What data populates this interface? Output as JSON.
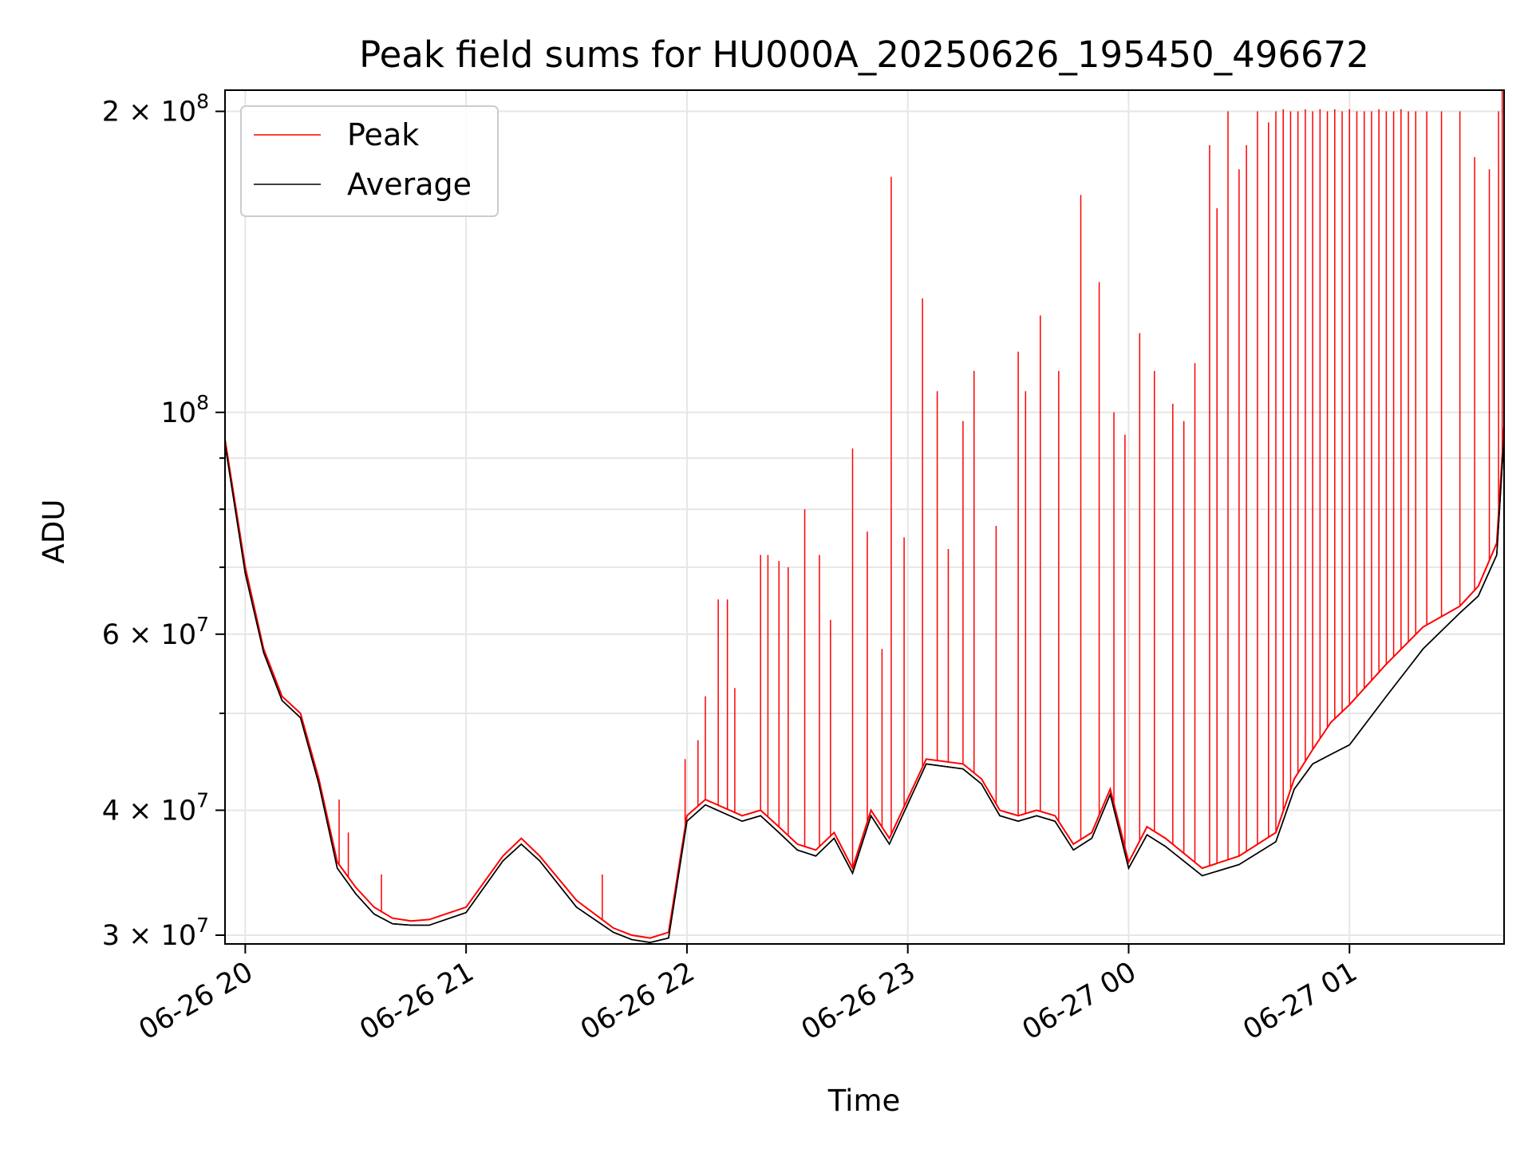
{
  "chart_data": {
    "type": "line",
    "title": "Peak field sums for HU000A_20250626_195450_496672",
    "xlabel": "Time",
    "ylabel": "ADU",
    "yscale": "log",
    "xlim": [
      "2025-06-26T19:54:30",
      "2025-06-27T01:42:00"
    ],
    "ylim": [
      29400000,
      210000000
    ],
    "grid": true,
    "legend_position": "top-left",
    "x_ticks": [
      {
        "t": "2025-06-26T20:00:00",
        "label": "06-26 20"
      },
      {
        "t": "2025-06-26T21:00:00",
        "label": "06-26 21"
      },
      {
        "t": "2025-06-26T22:00:00",
        "label": "06-26 22"
      },
      {
        "t": "2025-06-26T23:00:00",
        "label": "06-26 23"
      },
      {
        "t": "2025-06-27T00:00:00",
        "label": "06-27 00"
      },
      {
        "t": "2025-06-27T01:00:00",
        "label": "06-27 01"
      }
    ],
    "y_ticks": [
      {
        "value": 30000000,
        "mant": "3",
        "exp": "7"
      },
      {
        "value": 40000000,
        "mant": "4",
        "exp": "7"
      },
      {
        "value": 60000000,
        "mant": "6",
        "exp": "7"
      },
      {
        "value": 100000000,
        "mant": "",
        "exp": "8"
      },
      {
        "value": 200000000,
        "mant": "2",
        "exp": "8"
      }
    ],
    "y_minor_ticks": [
      50000000,
      70000000,
      80000000,
      90000000
    ],
    "tick_base": "10",
    "series": [
      {
        "name": "Peak",
        "color": "#ff0000",
        "x": [
          "2025-06-26T19:54:30",
          "2025-06-26T20:00:00",
          "2025-06-26T20:05:00",
          "2025-06-26T20:10:00",
          "2025-06-26T20:15:00",
          "2025-06-26T20:20:00",
          "2025-06-26T20:25:00",
          "2025-06-26T20:30:00",
          "2025-06-26T20:35:00",
          "2025-06-26T20:40:00",
          "2025-06-26T20:45:00",
          "2025-06-26T20:50:00",
          "2025-06-26T21:00:00",
          "2025-06-26T21:10:00",
          "2025-06-26T21:15:00",
          "2025-06-26T21:20:00",
          "2025-06-26T21:30:00",
          "2025-06-26T21:40:00",
          "2025-06-26T21:45:00",
          "2025-06-26T21:50:00",
          "2025-06-26T21:55:00",
          "2025-06-26T22:00:00",
          "2025-06-26T22:05:00",
          "2025-06-26T22:15:00",
          "2025-06-26T22:20:00",
          "2025-06-26T22:25:00",
          "2025-06-26T22:30:00",
          "2025-06-26T22:35:00",
          "2025-06-26T22:40:00",
          "2025-06-26T22:45:00",
          "2025-06-26T22:50:00",
          "2025-06-26T22:55:00",
          "2025-06-26T23:05:00",
          "2025-06-26T23:15:00",
          "2025-06-26T23:20:00",
          "2025-06-26T23:25:00",
          "2025-06-26T23:30:00",
          "2025-06-26T23:35:00",
          "2025-06-26T23:40:00",
          "2025-06-26T23:45:00",
          "2025-06-26T23:50:00",
          "2025-06-26T23:55:00",
          "2025-06-27T00:00:00",
          "2025-06-27T00:05:00",
          "2025-06-27T00:10:00",
          "2025-06-27T00:20:00",
          "2025-06-27T00:30:00",
          "2025-06-27T00:40:00",
          "2025-06-27T00:45:00",
          "2025-06-27T00:50:00",
          "2025-06-27T00:55:00",
          "2025-06-27T01:00:00",
          "2025-06-27T01:10:00",
          "2025-06-27T01:20:00",
          "2025-06-27T01:30:00",
          "2025-06-27T01:35:00",
          "2025-06-27T01:40:00",
          "2025-06-27T01:42:00"
        ],
        "y": [
          94000000,
          70000000,
          58000000,
          52000000,
          50000000,
          43000000,
          35500000,
          33500000,
          32000000,
          31200000,
          31000000,
          31100000,
          32000000,
          36000000,
          37500000,
          36000000,
          32500000,
          30500000,
          30000000,
          29800000,
          30200000,
          39500000,
          41000000,
          39500000,
          40000000,
          38500000,
          37000000,
          36500000,
          38000000,
          35000000,
          40000000,
          37500000,
          45000000,
          44500000,
          43000000,
          40000000,
          39500000,
          40000000,
          39500000,
          37000000,
          38000000,
          42000000,
          35500000,
          38500000,
          37500000,
          35000000,
          36000000,
          38000000,
          43000000,
          46000000,
          49000000,
          51000000,
          56000000,
          61000000,
          64000000,
          67000000,
          74000000,
          97000000
        ]
      },
      {
        "name": "Average",
        "color": "#000000",
        "x": [
          "2025-06-26T19:54:30",
          "2025-06-26T20:00:00",
          "2025-06-26T20:05:00",
          "2025-06-26T20:10:00",
          "2025-06-26T20:15:00",
          "2025-06-26T20:20:00",
          "2025-06-26T20:25:00",
          "2025-06-26T20:30:00",
          "2025-06-26T20:35:00",
          "2025-06-26T20:40:00",
          "2025-06-26T20:45:00",
          "2025-06-26T20:50:00",
          "2025-06-26T21:00:00",
          "2025-06-26T21:10:00",
          "2025-06-26T21:15:00",
          "2025-06-26T21:20:00",
          "2025-06-26T21:30:00",
          "2025-06-26T21:40:00",
          "2025-06-26T21:45:00",
          "2025-06-26T21:50:00",
          "2025-06-26T21:55:00",
          "2025-06-26T22:00:00",
          "2025-06-26T22:05:00",
          "2025-06-26T22:15:00",
          "2025-06-26T22:20:00",
          "2025-06-26T22:25:00",
          "2025-06-26T22:30:00",
          "2025-06-26T22:35:00",
          "2025-06-26T22:40:00",
          "2025-06-26T22:45:00",
          "2025-06-26T22:50:00",
          "2025-06-26T22:55:00",
          "2025-06-26T23:05:00",
          "2025-06-26T23:15:00",
          "2025-06-26T23:20:00",
          "2025-06-26T23:25:00",
          "2025-06-26T23:30:00",
          "2025-06-26T23:35:00",
          "2025-06-26T23:40:00",
          "2025-06-26T23:45:00",
          "2025-06-26T23:50:00",
          "2025-06-26T23:55:00",
          "2025-06-27T00:00:00",
          "2025-06-27T00:05:00",
          "2025-06-27T00:10:00",
          "2025-06-27T00:20:00",
          "2025-06-27T00:30:00",
          "2025-06-27T00:40:00",
          "2025-06-27T00:45:00",
          "2025-06-27T00:50:00",
          "2025-06-27T00:55:00",
          "2025-06-27T01:00:00",
          "2025-06-27T01:10:00",
          "2025-06-27T01:20:00",
          "2025-06-27T01:30:00",
          "2025-06-27T01:35:00",
          "2025-06-27T01:40:00",
          "2025-06-27T01:42:00"
        ],
        "y": [
          93000000,
          69000000,
          57500000,
          51500000,
          49500000,
          42500000,
          35000000,
          33000000,
          31500000,
          30800000,
          30700000,
          30700000,
          31600000,
          35600000,
          37000000,
          35600000,
          32000000,
          30200000,
          29700000,
          29500000,
          29800000,
          39000000,
          40500000,
          39000000,
          39500000,
          38000000,
          36500000,
          36000000,
          37500000,
          34600000,
          39500000,
          37000000,
          44500000,
          44000000,
          42500000,
          39500000,
          39000000,
          39500000,
          39000000,
          36500000,
          37500000,
          41500000,
          35000000,
          37800000,
          36800000,
          34400000,
          35300000,
          37200000,
          42000000,
          44500000,
          45500000,
          46500000,
          52000000,
          58000000,
          63000000,
          65500000,
          72000000,
          95000000
        ]
      }
    ],
    "spikes": {
      "color": "#ff0000",
      "x": [
        "2025-06-26T20:25:30",
        "2025-06-26T20:28:00",
        "2025-06-26T20:37:00",
        "2025-06-26T21:37:00",
        "2025-06-26T21:59:30",
        "2025-06-26T22:03:00",
        "2025-06-26T22:05:00",
        "2025-06-26T22:08:30",
        "2025-06-26T22:11:00",
        "2025-06-26T22:13:00",
        "2025-06-26T22:20:00",
        "2025-06-26T22:22:00",
        "2025-06-26T22:25:00",
        "2025-06-26T22:27:30",
        "2025-06-26T22:32:00",
        "2025-06-26T22:36:00",
        "2025-06-26T22:39:00",
        "2025-06-26T22:45:00",
        "2025-06-26T22:49:00",
        "2025-06-26T22:53:00",
        "2025-06-26T22:55:30",
        "2025-06-26T22:59:00",
        "2025-06-26T23:04:00",
        "2025-06-26T23:08:00",
        "2025-06-26T23:11:00",
        "2025-06-26T23:15:00",
        "2025-06-26T23:18:00",
        "2025-06-26T23:24:00",
        "2025-06-26T23:30:00",
        "2025-06-26T23:32:00",
        "2025-06-26T23:36:00",
        "2025-06-26T23:41:00",
        "2025-06-26T23:47:00",
        "2025-06-26T23:52:00",
        "2025-06-26T23:56:00",
        "2025-06-26T23:59:00",
        "2025-06-27T00:03:00",
        "2025-06-27T00:07:00",
        "2025-06-27T00:12:00",
        "2025-06-27T00:15:00",
        "2025-06-27T00:18:00",
        "2025-06-27T00:22:00",
        "2025-06-27T00:24:00",
        "2025-06-27T00:27:00",
        "2025-06-27T00:30:00",
        "2025-06-27T00:32:00",
        "2025-06-27T00:35:00",
        "2025-06-27T00:38:00",
        "2025-06-27T00:40:00",
        "2025-06-27T00:42:00",
        "2025-06-27T00:44:00",
        "2025-06-27T00:46:00",
        "2025-06-27T00:48:00",
        "2025-06-27T00:50:00",
        "2025-06-27T00:52:00",
        "2025-06-27T00:54:00",
        "2025-06-27T00:56:00",
        "2025-06-27T00:58:00",
        "2025-06-27T01:00:00",
        "2025-06-27T01:02:00",
        "2025-06-27T01:04:00",
        "2025-06-27T01:06:00",
        "2025-06-27T01:08:00",
        "2025-06-27T01:10:00",
        "2025-06-27T01:12:00",
        "2025-06-27T01:14:00",
        "2025-06-27T01:16:00",
        "2025-06-27T01:18:00",
        "2025-06-27T01:21:00",
        "2025-06-27T01:25:00",
        "2025-06-27T01:30:00",
        "2025-06-27T01:34:00",
        "2025-06-27T01:38:00",
        "2025-06-27T01:40:30",
        "2025-06-27T01:41:30"
      ],
      "y": [
        41000000,
        38000000,
        34500000,
        34500000,
        45000000,
        47000000,
        52000000,
        65000000,
        65000000,
        53000000,
        72000000,
        72000000,
        71000000,
        70000000,
        80000000,
        72000000,
        62000000,
        92000000,
        76000000,
        58000000,
        172000000,
        75000000,
        130000000,
        105000000,
        73000000,
        98000000,
        110000000,
        77000000,
        115000000,
        105000000,
        125000000,
        110000000,
        165000000,
        135000000,
        100000000,
        95000000,
        120000000,
        110000000,
        102000000,
        98000000,
        112000000,
        185000000,
        160000000,
        200000000,
        175000000,
        185000000,
        200000000,
        195000000,
        200000000,
        201000000,
        200000000,
        200000000,
        201000000,
        200000000,
        201000000,
        200000000,
        201000000,
        200000000,
        201000000,
        200000000,
        200000000,
        200000000,
        201000000,
        200000000,
        200000000,
        201000000,
        200000000,
        200000000,
        200000000,
        200000000,
        200000000,
        180000000,
        175000000,
        200000000,
        210000000
      ]
    }
  }
}
